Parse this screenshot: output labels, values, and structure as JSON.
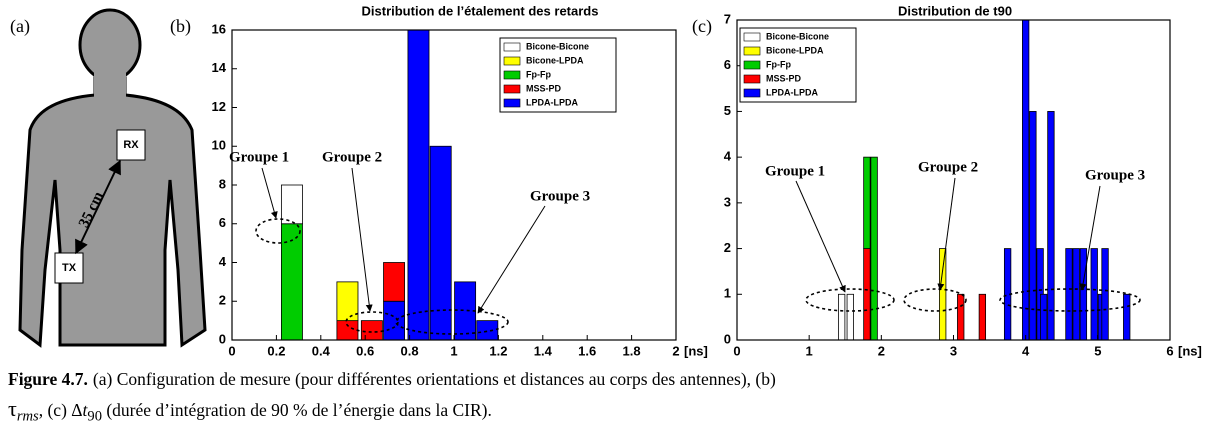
{
  "panels": {
    "a": "(a)",
    "b": "(b)",
    "c": "(c)"
  },
  "diagram": {
    "rx": "RX",
    "tx": "TX",
    "distance": "35 cm"
  },
  "chart_data": [
    {
      "type": "bar",
      "stacked": true,
      "title": "Distribution de l’étalement des retards",
      "x_unit": "[ns]",
      "x": [
        0.27,
        0.52,
        0.63,
        0.73,
        0.84,
        0.94,
        1.05,
        1.15
      ],
      "series": [
        {
          "name": "Bicone-Bicone",
          "color": "#ffffff",
          "values": [
            2,
            0,
            0,
            0,
            0,
            0,
            0,
            0
          ]
        },
        {
          "name": "Bicone-LPDA",
          "color": "#ffff00",
          "values": [
            0,
            2,
            0,
            0,
            0,
            0,
            0,
            0
          ]
        },
        {
          "name": "Fp-Fp",
          "color": "#00cc00",
          "values": [
            6,
            0,
            0,
            0,
            0,
            0,
            0,
            0
          ]
        },
        {
          "name": "MSS-PD",
          "color": "#ff0000",
          "values": [
            0,
            1,
            1,
            2,
            0,
            0,
            0,
            0
          ]
        },
        {
          "name": "LPDA-LPDA",
          "color": "#0000ff",
          "values": [
            0,
            0,
            0,
            2,
            16,
            10,
            3,
            1
          ]
        }
      ],
      "xlim": [
        0,
        2
      ],
      "xticks": [
        0,
        0.2,
        0.4,
        0.6,
        0.8,
        1,
        1.2,
        1.4,
        1.6,
        1.8,
        2
      ],
      "ylim": [
        0,
        16
      ],
      "yticks": [
        0,
        2,
        4,
        6,
        8,
        10,
        12,
        14,
        16
      ],
      "legend": "upper-right",
      "grid": false,
      "annotations": [
        "Groupe 1",
        "Groupe 2",
        "Groupe 3"
      ]
    },
    {
      "type": "bar",
      "stacked": true,
      "title": "Distribution de t90",
      "x_unit": "[ns]",
      "x": [
        1.45,
        1.57,
        1.8,
        1.9,
        2.85,
        3.1,
        3.4,
        3.75,
        4.0,
        4.1,
        4.2,
        4.25,
        4.35,
        4.6,
        4.7,
        4.8,
        4.95,
        5.05,
        5.1,
        5.4
      ],
      "series": [
        {
          "name": "Bicone-Bicone",
          "color": "#ffffff",
          "values": [
            1,
            1,
            0,
            0,
            0,
            0,
            0,
            0,
            0,
            0,
            0,
            0,
            0,
            0,
            0,
            0,
            0,
            0,
            0,
            0
          ]
        },
        {
          "name": "Bicone-LPDA",
          "color": "#ffff00",
          "values": [
            0,
            0,
            0,
            0,
            2,
            0,
            0,
            0,
            0,
            0,
            0,
            0,
            0,
            0,
            0,
            0,
            0,
            0,
            0,
            0
          ]
        },
        {
          "name": "Fp-Fp",
          "color": "#00cc00",
          "values": [
            0,
            0,
            2,
            4,
            0,
            0,
            0,
            0,
            0,
            0,
            0,
            0,
            0,
            0,
            0,
            0,
            0,
            0,
            0,
            0
          ]
        },
        {
          "name": "MSS-PD",
          "color": "#ff0000",
          "values": [
            0,
            0,
            2,
            0,
            0,
            1,
            1,
            0,
            0,
            0,
            0,
            0,
            0,
            0,
            0,
            0,
            0,
            0,
            0,
            0
          ]
        },
        {
          "name": "LPDA-LPDA",
          "color": "#0000ff",
          "values": [
            0,
            0,
            0,
            0,
            0,
            0,
            0,
            2,
            7,
            5,
            2,
            1,
            5,
            2,
            2,
            2,
            2,
            1,
            2,
            1
          ]
        }
      ],
      "xlim": [
        0,
        6
      ],
      "xticks": [
        0,
        1,
        2,
        3,
        4,
        5,
        6
      ],
      "ylim": [
        0,
        7
      ],
      "yticks": [
        0,
        1,
        2,
        3,
        4,
        5,
        6,
        7
      ],
      "legend": "upper-left",
      "grid": false,
      "annotations": [
        "Groupe 1",
        "Groupe 2",
        "Groupe 3"
      ]
    }
  ],
  "caption": {
    "label": "Figure 4.7.",
    "line1": "(a) Configuration de mesure (pour différentes orientations et distances au corps des antennes), (b)",
    "tau": "τ",
    "tau_sub": "rms",
    "mid": ", (c) Δ",
    "t": "t",
    "t_sub": "90",
    "end": " (durée d’intégration de 90 % de l’énergie dans la CIR)."
  }
}
